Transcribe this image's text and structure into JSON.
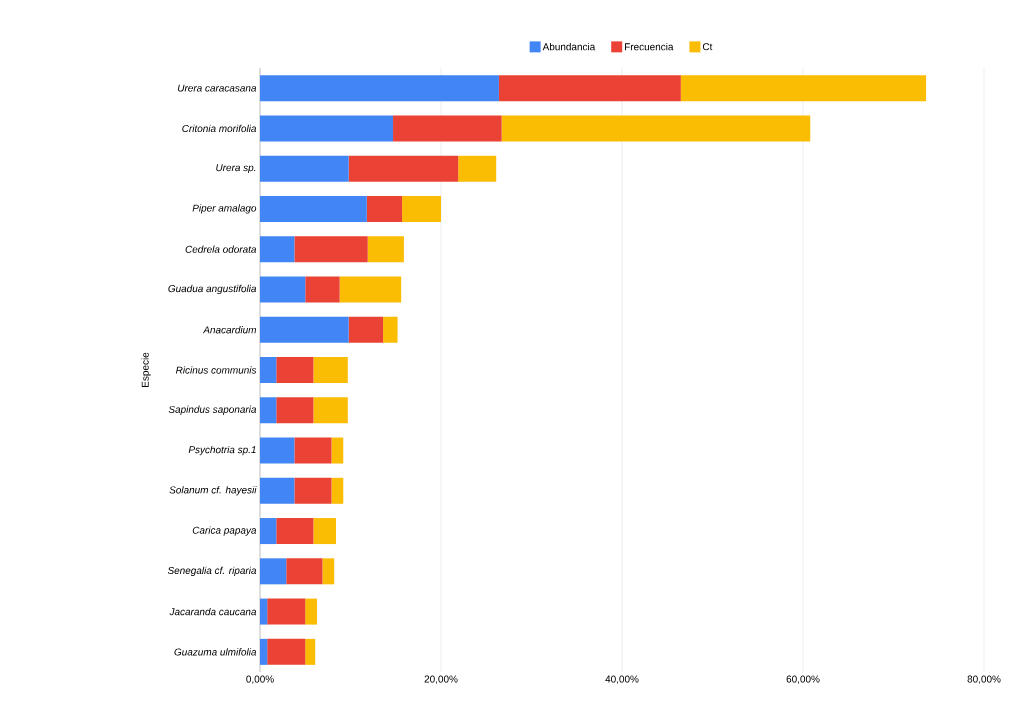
{
  "chart_data": {
    "type": "bar",
    "orientation": "horizontal",
    "stacked": true,
    "ylabel": "Especie",
    "categories": [
      "Urera caracasana",
      "Critonia morifolia",
      "Urera sp.",
      "Piper amalago",
      "Cedrela odorata",
      "Guadua angustifolia",
      "Anacardium",
      "Ricinus communis",
      "Sapindus saponaria",
      "Psychotria sp.1",
      "Solanum cf. hayesii",
      "Carica papaya",
      "Senegalia cf. riparia",
      "Jacaranda caucana",
      "Guazuma ulmifolia"
    ],
    "series": [
      {
        "name": "Abundancia",
        "color": "#4285f4",
        "values": [
          26.4,
          14.7,
          9.8,
          11.8,
          3.8,
          5.0,
          9.8,
          1.8,
          1.8,
          3.8,
          3.8,
          1.8,
          2.9,
          0.8,
          0.8
        ]
      },
      {
        "name": "Frecuencia",
        "color": "#ea4335",
        "values": [
          20.1,
          12.0,
          12.1,
          3.9,
          8.1,
          3.8,
          3.8,
          4.1,
          4.1,
          4.1,
          4.1,
          4.1,
          4.0,
          4.2,
          4.2
        ]
      },
      {
        "name": "Ct",
        "color": "#fbbc04",
        "values": [
          27.1,
          34.1,
          4.2,
          4.3,
          4.0,
          6.8,
          1.6,
          3.8,
          3.8,
          1.3,
          1.3,
          2.5,
          1.3,
          1.3,
          1.1
        ]
      }
    ],
    "xlim": [
      0,
      80
    ],
    "xticks": [
      {
        "value": 0,
        "label": "0,00%"
      },
      {
        "value": 20,
        "label": "20,00%"
      },
      {
        "value": 40,
        "label": "40,00%"
      },
      {
        "value": 60,
        "label": "60,00%"
      },
      {
        "value": 80,
        "label": "80,00%"
      }
    ],
    "grid": "x",
    "legend": "top"
  }
}
